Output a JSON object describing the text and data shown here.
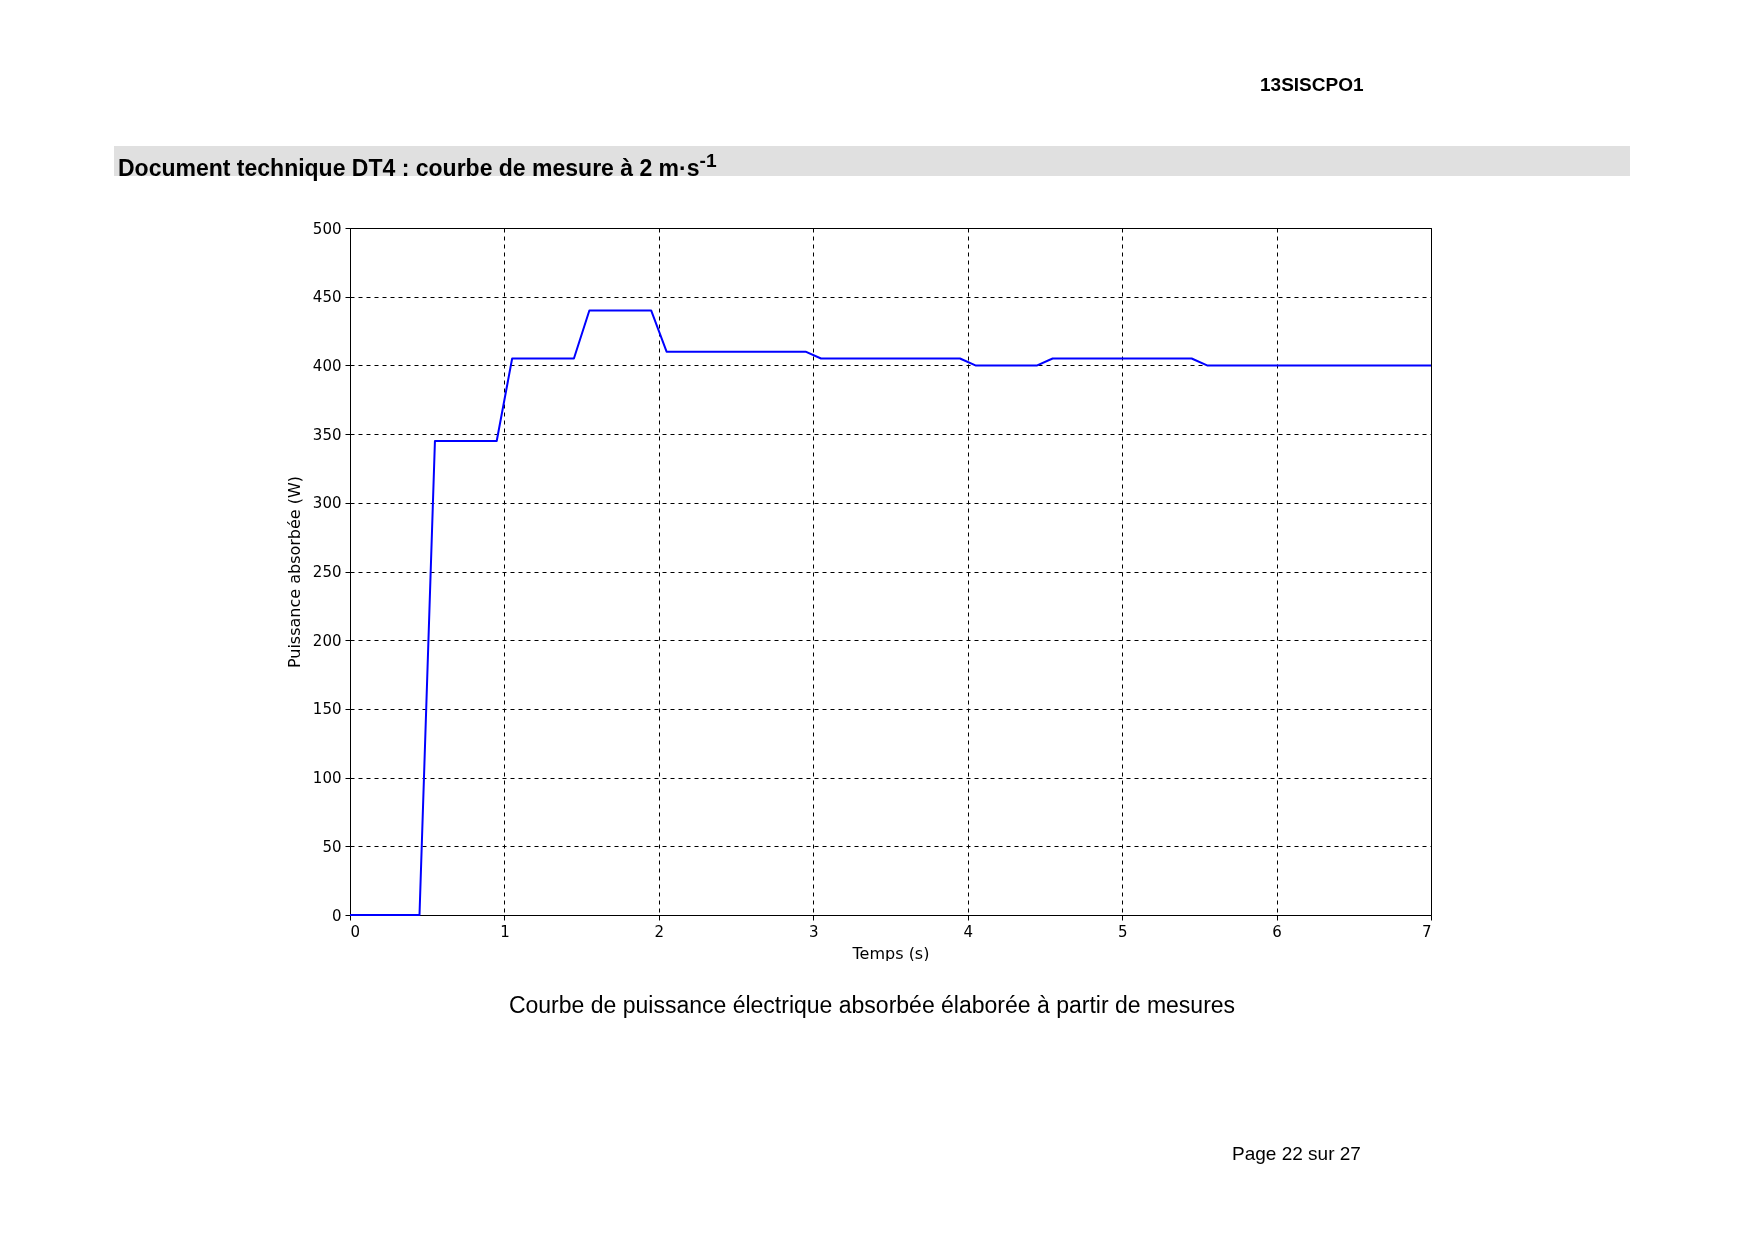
{
  "chart_data": {
    "type": "line",
    "title": "Document technique DT4 : courbe de mesure à 2 m·s$^{-1}$",
    "xlabel": "Temps (s)",
    "ylabel": "Puissance absorbée (W)",
    "annotations": [
      "13SISCPO1",
      "Courbe de puissance électrique absorbée élaborée à partir de mesures",
      "Page 22 sur 27"
    ],
    "x": [
      0,
      0.45,
      0.55,
      0.95,
      1.05,
      1.45,
      1.55,
      1.95,
      2.05,
      2.95,
      3.05,
      3.95,
      4.05,
      4.45,
      4.55,
      5.45,
      5.55,
      7
    ],
    "series": [
      {
        "color": "#0000ff",
        "values": [
          0,
          0,
          345,
          345,
          405,
          405,
          440,
          440,
          410,
          410,
          405,
          405,
          400,
          400,
          405,
          405,
          400,
          400
        ]
      }
    ],
    "xlim": [
      0,
      7
    ],
    "xticks": [
      0,
      1,
      2,
      3,
      4,
      5,
      6,
      7
    ],
    "ylim": [
      0,
      500
    ],
    "yticks": [
      0,
      50,
      100,
      150,
      200,
      250,
      300,
      350,
      400,
      450,
      500
    ],
    "grid": true,
    "line_style": "solid",
    "marker": "none"
  }
}
